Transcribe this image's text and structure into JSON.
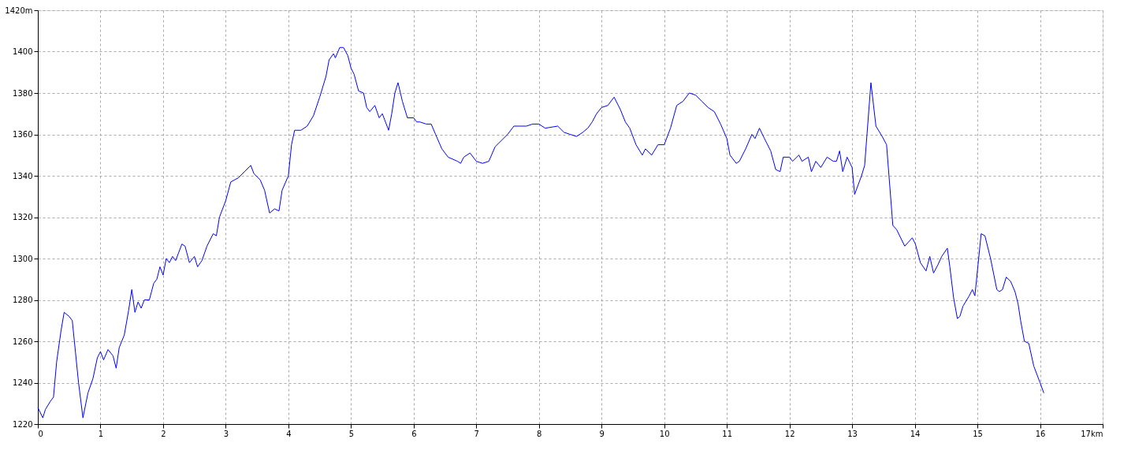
{
  "chart_data": {
    "type": "line",
    "xlim": [
      0,
      17
    ],
    "ylim": [
      1220,
      1420
    ],
    "xticks": [
      0,
      1,
      2,
      3,
      4,
      5,
      6,
      7,
      8,
      9,
      10,
      11,
      12,
      13,
      14,
      15,
      16,
      {
        "value": 17,
        "label": "17km"
      }
    ],
    "yticks": [
      1220,
      1240,
      1260,
      1280,
      1300,
      1320,
      1340,
      1360,
      1380,
      1400,
      {
        "value": 1420,
        "label": "1420m"
      }
    ],
    "grid": true,
    "marker": "none",
    "line_style": "solid",
    "series": [
      {
        "color": "#0000ff",
        "x": [
          0,
          0.08,
          0.12,
          0.2,
          0.25,
          0.3,
          0.37,
          0.42,
          0.5,
          0.55,
          0.6,
          0.65,
          0.72,
          0.8,
          0.88,
          0.95,
          1.0,
          1.05,
          1.12,
          1.2,
          1.25,
          1.3,
          1.38,
          1.45,
          1.5,
          1.55,
          1.6,
          1.65,
          1.7,
          1.78,
          1.85,
          1.9,
          1.95,
          2.0,
          2.05,
          2.1,
          2.15,
          2.2,
          2.25,
          2.3,
          2.35,
          2.42,
          2.5,
          2.55,
          2.62,
          2.7,
          2.8,
          2.85,
          2.9,
          3.0,
          3.08,
          3.2,
          3.3,
          3.4,
          3.45,
          3.55,
          3.62,
          3.7,
          3.78,
          3.85,
          3.9,
          4.0,
          4.05,
          4.1,
          4.2,
          4.3,
          4.4,
          4.5,
          4.6,
          4.65,
          4.72,
          4.75,
          4.82,
          4.88,
          4.95,
          5.0,
          5.05,
          5.12,
          5.2,
          5.25,
          5.3,
          5.38,
          5.45,
          5.5,
          5.55,
          5.6,
          5.65,
          5.7,
          5.75,
          5.82,
          5.9,
          6.0,
          6.05,
          6.1,
          6.2,
          6.28,
          6.35,
          6.45,
          6.55,
          6.7,
          6.75,
          6.8,
          6.9,
          7.0,
          7.1,
          7.2,
          7.3,
          7.4,
          7.5,
          7.6,
          7.7,
          7.8,
          7.9,
          8.0,
          8.1,
          8.3,
          8.4,
          8.5,
          8.6,
          8.7,
          8.78,
          8.85,
          8.92,
          9.0,
          9.1,
          9.2,
          9.3,
          9.38,
          9.45,
          9.55,
          9.65,
          9.7,
          9.8,
          9.9,
          10.0,
          10.1,
          10.2,
          10.3,
          10.4,
          10.5,
          10.6,
          10.7,
          10.8,
          10.9,
          11.0,
          11.05,
          11.15,
          11.2,
          11.3,
          11.4,
          11.45,
          11.52,
          11.6,
          11.7,
          11.78,
          11.85,
          11.9,
          12.0,
          12.05,
          12.15,
          12.2,
          12.3,
          12.35,
          12.42,
          12.5,
          12.6,
          12.7,
          12.75,
          12.8,
          12.85,
          12.92,
          13.0,
          13.04,
          13.15,
          13.2,
          13.3,
          13.38,
          13.48,
          13.55,
          13.65,
          13.71,
          13.84,
          13.96,
          14.01,
          14.09,
          14.18,
          14.24,
          14.3,
          14.37,
          14.43,
          14.52,
          14.56,
          14.62,
          14.68,
          14.72,
          14.77,
          14.87,
          14.92,
          14.96,
          15.01,
          15.06,
          15.12,
          15.21,
          15.31,
          15.35,
          15.4,
          15.46,
          15.53,
          15.6,
          15.65,
          15.69,
          15.75,
          15.82,
          15.9,
          16.0,
          16.06
        ],
        "values": [
          1228,
          1223,
          1227,
          1231,
          1233,
          1250,
          1265,
          1274,
          1272,
          1270,
          1255,
          1240,
          1223,
          1235,
          1242,
          1252,
          1255,
          1251,
          1256,
          1253,
          1247,
          1257,
          1263,
          1275,
          1285,
          1274,
          1279,
          1276,
          1280,
          1280,
          1288,
          1290,
          1296,
          1292,
          1300,
          1298,
          1301,
          1299,
          1303,
          1307,
          1306,
          1298,
          1301,
          1296,
          1299,
          1306,
          1312,
          1311,
          1320,
          1328,
          1337,
          1339,
          1342,
          1345,
          1341,
          1338,
          1333,
          1322,
          1324,
          1323,
          1333,
          1340,
          1355,
          1362,
          1362,
          1364,
          1369,
          1378,
          1388,
          1396,
          1399,
          1397,
          1402,
          1402,
          1398,
          1392,
          1389,
          1381,
          1380,
          1373,
          1371,
          1374,
          1368,
          1370,
          1366,
          1362,
          1370,
          1380,
          1385,
          1376,
          1368,
          1368,
          1366,
          1366,
          1365,
          1365,
          1360,
          1353,
          1349,
          1347,
          1346,
          1349,
          1351,
          1347,
          1346,
          1347,
          1354,
          1357,
          1360,
          1364,
          1364,
          1364,
          1365,
          1365,
          1363,
          1364,
          1361,
          1360,
          1359,
          1361,
          1363,
          1366,
          1370,
          1373,
          1374,
          1378,
          1372,
          1366,
          1363,
          1355,
          1350,
          1353,
          1350,
          1355,
          1355,
          1363,
          1374,
          1376,
          1380,
          1379,
          1376,
          1373,
          1371,
          1365,
          1358,
          1350,
          1346,
          1347,
          1353,
          1360,
          1358,
          1363,
          1358,
          1352,
          1343,
          1342,
          1349,
          1349,
          1347,
          1350,
          1347,
          1349,
          1342,
          1347,
          1344,
          1349,
          1347,
          1347,
          1352,
          1342,
          1349,
          1344,
          1331,
          1340,
          1345,
          1385,
          1364,
          1359,
          1355,
          1316,
          1314,
          1306,
          1310,
          1307,
          1298,
          1294,
          1301,
          1293,
          1297,
          1301,
          1305,
          1296,
          1281,
          1271,
          1272,
          1277,
          1282,
          1285,
          1282,
          1297,
          1312,
          1311,
          1300,
          1285,
          1284,
          1285,
          1291,
          1289,
          1284,
          1278,
          1270,
          1260,
          1259,
          1248,
          1240,
          1235
        ]
      }
    ]
  }
}
